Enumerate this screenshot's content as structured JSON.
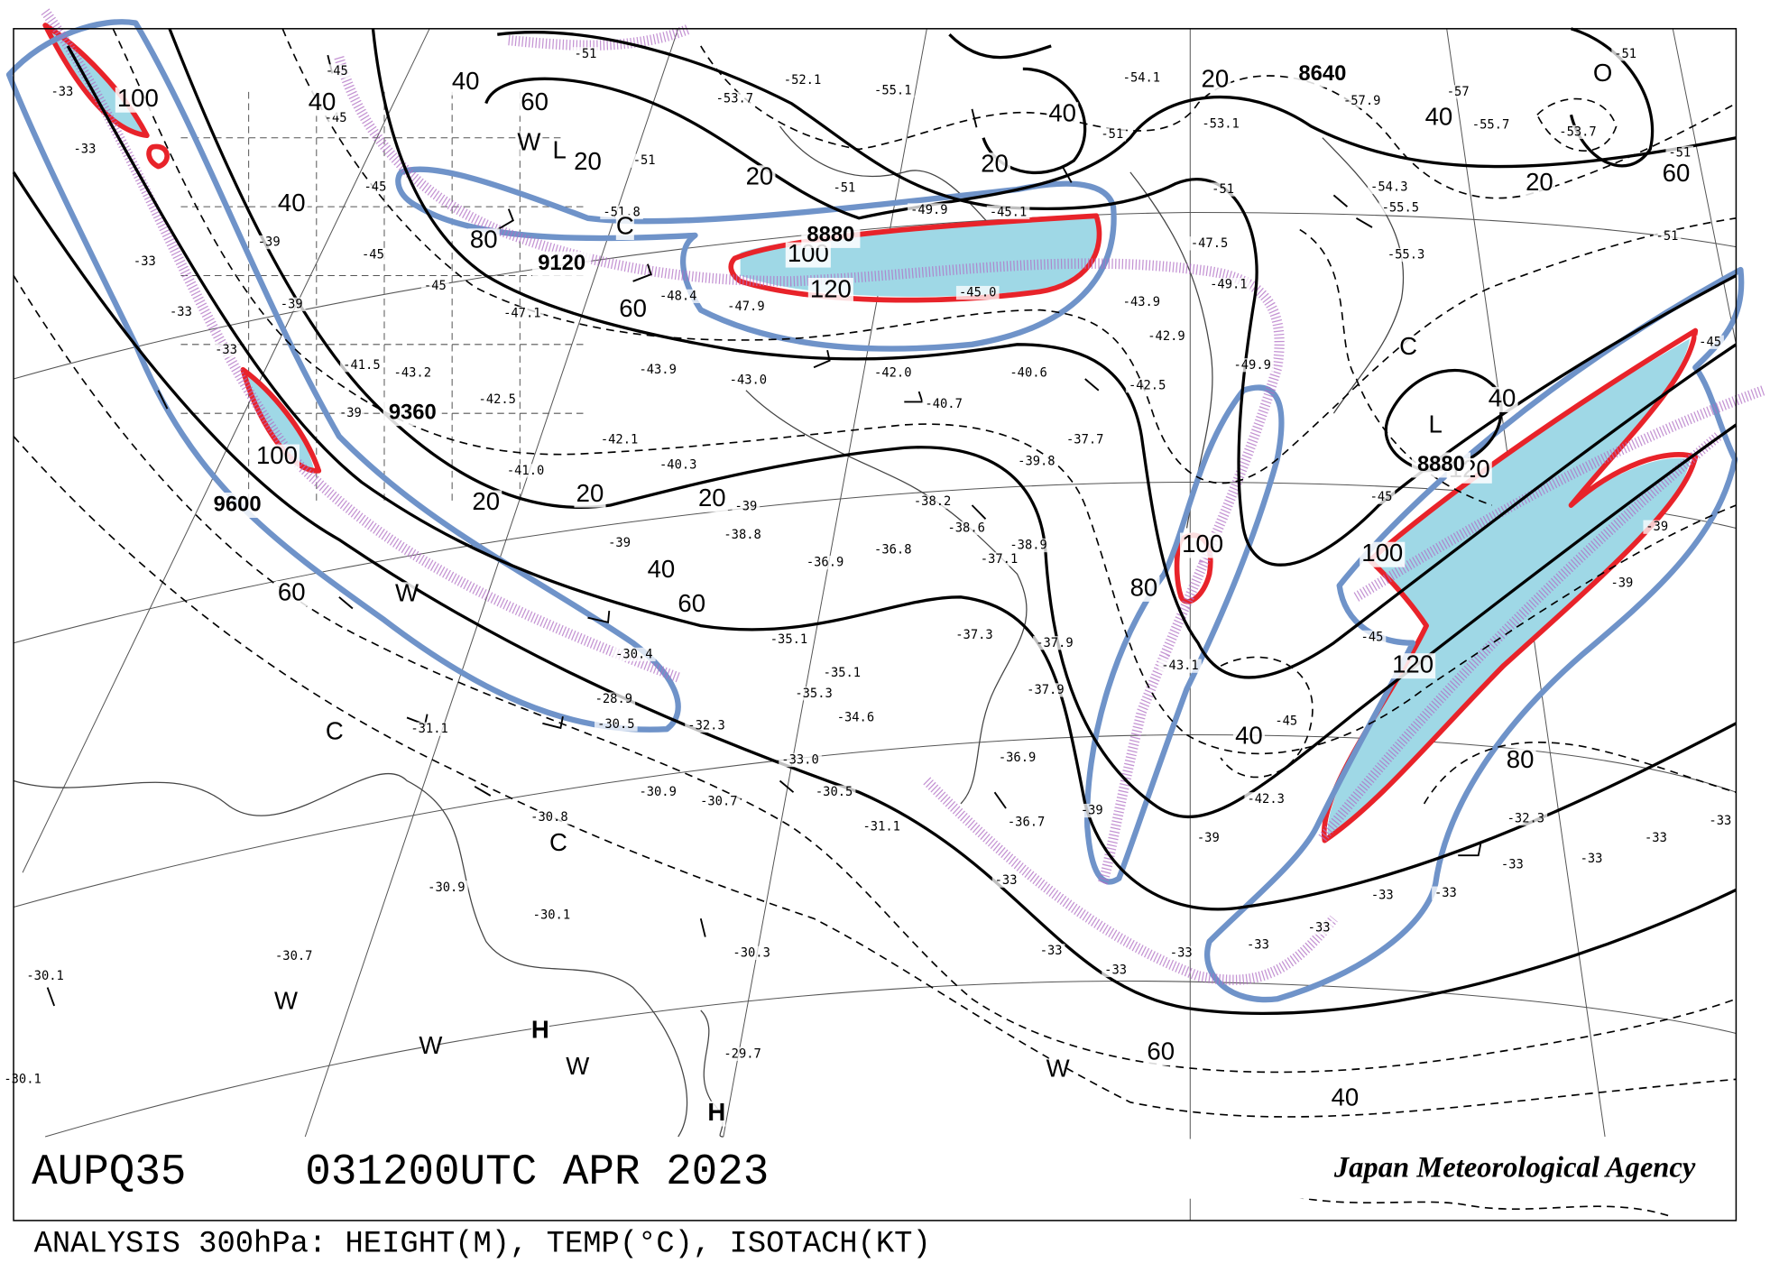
{
  "header": {
    "product": "AUPQ35",
    "valid_time": "031200UTC APR 2023",
    "agency": "Japan Meteorological Agency"
  },
  "caption": "ANALYSIS 300hPa: HEIGHT(M), TEMP(°C), ISOTACH(KT)",
  "map": {
    "height_labels": [
      "9600",
      "9360",
      "9120",
      "8880",
      "8640",
      "8880"
    ],
    "isotach_labels": [
      "100",
      "40",
      "40",
      "80",
      "60",
      "60",
      "20",
      "40",
      "20",
      "20",
      "20",
      "40",
      "60",
      "60",
      "100",
      "100",
      "120",
      "20",
      "20",
      "40",
      "20",
      "40",
      "20",
      "60",
      "40",
      "120",
      "100",
      "120",
      "80",
      "80",
      "100",
      "40",
      "60",
      "40"
    ],
    "systems": [
      "L",
      "W",
      "C",
      "W",
      "C",
      "C",
      "W",
      "W",
      "H",
      "W",
      "H",
      "W",
      "C",
      "L",
      "O"
    ],
    "temperatures": [
      "-33",
      "-33",
      "-33",
      "-33",
      "-33",
      "-45",
      "-45",
      "-45",
      "-45",
      "-45",
      "-39",
      "-39",
      "-39",
      "-39",
      "-39",
      "-51",
      "-51",
      "-51",
      "-51",
      "-51",
      "-51",
      "-51",
      "-51",
      "-43.0",
      "-42.0",
      "-40.7",
      "-42.5",
      "-43.9",
      "-47.5",
      "-49.1",
      "-53.1",
      "-55.1",
      "-54.1",
      "-55.7",
      "-54.3",
      "-55.5",
      "-55.3",
      "-38.2",
      "-38.6",
      "-37.1",
      "-38.9",
      "-36.9",
      "-36.8",
      "-38.8",
      "-35.1",
      "-35.1",
      "-34.6",
      "-35.3",
      "-33.0",
      "-32.3",
      "-30.5",
      "-28.9",
      "-30.4",
      "-30.7",
      "-30.9",
      "-30.5",
      "-31.1",
      "-30.8",
      "-31.1",
      "-30.9",
      "-30.1",
      "-30.7",
      "-30.1",
      "-30.3",
      "-29.7",
      "-30.1",
      "-32.3",
      "-36.9",
      "-36.7",
      "-37.9",
      "-37.9",
      "-37.3",
      "-42.3",
      "-43.1",
      "-49.9",
      "-37.7",
      "-39.8",
      "-40.6",
      "-42.9",
      "-40.3",
      "-42.1",
      "-41.0",
      "-42.5",
      "-43.2",
      "-41.5",
      "-43.9",
      "-47.9",
      "-48.4",
      "-47.1",
      "-51.8",
      "-53.7",
      "-52.1",
      "-45.0",
      "-45.1",
      "-49.9",
      "-57.9",
      "-57",
      "-53.7",
      "-33",
      "-33",
      "-33",
      "-33",
      "-33",
      "-33",
      "-33",
      "-33",
      "-33",
      "-33",
      "-33",
      "-33",
      "-39",
      "-39",
      "-45",
      "-45",
      "-45",
      "-45",
      "-39",
      "-39"
    ]
  }
}
